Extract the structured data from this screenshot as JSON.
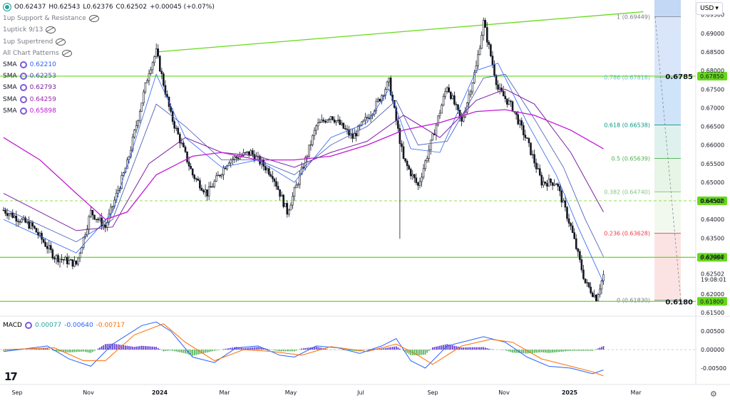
{
  "header": {
    "ohlc": {
      "o": "O0.62437",
      "h": "H0.62543",
      "l": "L0.62376",
      "c": "C0.62502",
      "chg": "+0.00045 (+0.07%)"
    },
    "indicators": [
      "1up Support & Resistance",
      "1uptick 9/13",
      "1up Supertrend",
      "All Chart Patterns"
    ],
    "sma": [
      {
        "label": "SMA",
        "value": "0.62210",
        "color": "#2962ff"
      },
      {
        "label": "SMA",
        "value": "0.62253",
        "color": "#3f51b5"
      },
      {
        "label": "SMA",
        "value": "0.62793",
        "color": "#7b1fa2"
      },
      {
        "label": "SMA",
        "value": "0.64259",
        "color": "#9c27b0"
      },
      {
        "label": "SMA",
        "value": "0.65898",
        "color": "#c118d6"
      }
    ]
  },
  "currency_button": "USD",
  "macd": {
    "label": "MACD",
    "hist": "0.00077",
    "macd": "-0.00640",
    "signal": "-0.00717"
  },
  "colors": {
    "up": "#131722",
    "accent_green": "#66d91a",
    "macd_line": "#2962ff",
    "signal_line": "#ff6d00",
    "hist_up": "#5b2ecc",
    "hist_down": "#4caf50"
  },
  "chart_data": [
    {
      "type": "candlestick",
      "title": "",
      "ylim": [
        0.6148,
        0.698
      ],
      "x_labels": [
        "Sep",
        "Nov",
        "2024",
        "Mar",
        "May",
        "Jul",
        "Sep",
        "Nov",
        "2025",
        "Mar"
      ],
      "y_ticks": [
        "0.69500",
        "0.69000",
        "0.68500",
        "0.68000",
        "0.67500",
        "0.67000",
        "0.66500",
        "0.66000",
        "0.65500",
        "0.65000",
        "0.64500",
        "0.64000",
        "0.63500",
        "0.63000",
        "0.62500",
        "0.62000",
        "0.61500"
      ],
      "price_anchors": [
        {
          "t": 0,
          "p": 0.6425
        },
        {
          "t": 8,
          "p": 0.638
        },
        {
          "t": 14,
          "p": 0.63
        },
        {
          "t": 20,
          "p": 0.628
        },
        {
          "t": 24,
          "p": 0.642
        },
        {
          "t": 28,
          "p": 0.638
        },
        {
          "t": 34,
          "p": 0.655
        },
        {
          "t": 40,
          "p": 0.68
        },
        {
          "t": 42,
          "p": 0.685
        },
        {
          "t": 46,
          "p": 0.668
        },
        {
          "t": 52,
          "p": 0.652
        },
        {
          "t": 56,
          "p": 0.647
        },
        {
          "t": 62,
          "p": 0.656
        },
        {
          "t": 68,
          "p": 0.658
        },
        {
          "t": 74,
          "p": 0.652
        },
        {
          "t": 78,
          "p": 0.642
        },
        {
          "t": 82,
          "p": 0.653
        },
        {
          "t": 86,
          "p": 0.665
        },
        {
          "t": 90,
          "p": 0.668
        },
        {
          "t": 96,
          "p": 0.662
        },
        {
          "t": 102,
          "p": 0.67
        },
        {
          "t": 106,
          "p": 0.677
        },
        {
          "t": 110,
          "p": 0.656
        },
        {
          "t": 114,
          "p": 0.649
        },
        {
          "t": 118,
          "p": 0.662
        },
        {
          "t": 122,
          "p": 0.676
        },
        {
          "t": 126,
          "p": 0.666
        },
        {
          "t": 130,
          "p": 0.681
        },
        {
          "t": 132,
          "p": 0.693
        },
        {
          "t": 136,
          "p": 0.675
        },
        {
          "t": 140,
          "p": 0.67
        },
        {
          "t": 144,
          "p": 0.661
        },
        {
          "t": 148,
          "p": 0.65
        },
        {
          "t": 152,
          "p": 0.65
        },
        {
          "t": 156,
          "p": 0.638
        },
        {
          "t": 160,
          "p": 0.623
        },
        {
          "t": 163,
          "p": 0.619
        },
        {
          "t": 165,
          "p": 0.625
        }
      ],
      "ma_lines": [
        {
          "color": "#2962ff",
          "width": 0.8,
          "pts": [
            [
              0,
              0.64
            ],
            [
              20,
              0.631
            ],
            [
              30,
              0.642
            ],
            [
              42,
              0.679
            ],
            [
              50,
              0.662
            ],
            [
              60,
              0.654
            ],
            [
              70,
              0.656
            ],
            [
              80,
              0.65
            ],
            [
              90,
              0.662
            ],
            [
              100,
              0.666
            ],
            [
              106,
              0.675
            ],
            [
              112,
              0.659
            ],
            [
              120,
              0.658
            ],
            [
              130,
              0.68
            ],
            [
              136,
              0.682
            ],
            [
              144,
              0.666
            ],
            [
              152,
              0.652
            ],
            [
              158,
              0.638
            ],
            [
              165,
              0.623
            ]
          ]
        },
        {
          "color": "#3f51b5",
          "width": 0.8,
          "pts": [
            [
              0,
              0.643
            ],
            [
              20,
              0.634
            ],
            [
              30,
              0.64
            ],
            [
              42,
              0.671
            ],
            [
              50,
              0.665
            ],
            [
              60,
              0.656
            ],
            [
              70,
              0.656
            ],
            [
              80,
              0.652
            ],
            [
              90,
              0.66
            ],
            [
              100,
              0.665
            ],
            [
              108,
              0.672
            ],
            [
              114,
              0.66
            ],
            [
              122,
              0.661
            ],
            [
              132,
              0.678
            ],
            [
              138,
              0.679
            ],
            [
              146,
              0.667
            ],
            [
              154,
              0.654
            ],
            [
              160,
              0.64
            ],
            [
              165,
              0.63
            ]
          ]
        },
        {
          "color": "#7b1fa2",
          "width": 1.0,
          "pts": [
            [
              0,
              0.647
            ],
            [
              20,
              0.637
            ],
            [
              30,
              0.638
            ],
            [
              40,
              0.655
            ],
            [
              50,
              0.662
            ],
            [
              60,
              0.658
            ],
            [
              70,
              0.657
            ],
            [
              80,
              0.654
            ],
            [
              90,
              0.658
            ],
            [
              100,
              0.661
            ],
            [
              110,
              0.668
            ],
            [
              120,
              0.662
            ],
            [
              130,
              0.672
            ],
            [
              138,
              0.675
            ],
            [
              146,
              0.671
            ],
            [
              156,
              0.658
            ],
            [
              165,
              0.642
            ]
          ]
        },
        {
          "color": "#c118d6",
          "width": 1.3,
          "pts": [
            [
              0,
              0.662
            ],
            [
              10,
              0.656
            ],
            [
              20,
              0.647
            ],
            [
              28,
              0.64
            ],
            [
              34,
              0.642
            ],
            [
              42,
              0.652
            ],
            [
              52,
              0.657
            ],
            [
              60,
              0.658
            ],
            [
              70,
              0.656
            ],
            [
              80,
              0.656
            ],
            [
              90,
              0.657
            ],
            [
              100,
              0.66
            ],
            [
              110,
              0.664
            ],
            [
              120,
              0.666
            ],
            [
              130,
              0.669
            ],
            [
              138,
              0.6695
            ],
            [
              146,
              0.668
            ],
            [
              156,
              0.664
            ],
            [
              165,
              0.659
            ]
          ]
        }
      ],
      "horizontal_levels": [
        {
          "price": 0.6785,
          "label": "0.6785",
          "tag": "0.67850"
        },
        {
          "price": 0.62984,
          "label": "",
          "tag": "0.62984"
        },
        {
          "price": 0.618,
          "label": "0.6180",
          "tag": "0.61800"
        }
      ],
      "dashed_level": {
        "price": 0.64502,
        "tag": "0.64502"
      },
      "current_price": {
        "price": 0.62502,
        "tag": "0.62502",
        "countdown": "19:08:01"
      },
      "trendline": [
        [
          42,
          0.685
        ],
        [
          176,
          0.6958
        ]
      ],
      "fibonacci": [
        {
          "ratio": "1",
          "price": 0.69449,
          "label": "1 (0.69449)",
          "color": "#787b86"
        },
        {
          "ratio": "0.786",
          "price": 0.67818,
          "label": "0.786 (0.67818)",
          "color": "#64b5f6"
        },
        {
          "ratio": "0.618",
          "price": 0.66538,
          "label": "0.618 (0.66538)",
          "color": "#089981"
        },
        {
          "ratio": "0.5",
          "price": 0.65639,
          "label": "0.5 (0.65639)",
          "color": "#4caf50"
        },
        {
          "ratio": "0.382",
          "price": 0.6474,
          "label": "0.382 (0.64740)",
          "color": "#81c784"
        },
        {
          "ratio": "0.236",
          "price": 0.63628,
          "label": "0.236 (0.63628)",
          "color": "#f23645"
        },
        {
          "ratio": "0",
          "price": 0.6183,
          "label": "0 (0.61830)",
          "color": "#787b86"
        }
      ]
    },
    {
      "type": "macd",
      "ylim": [
        -0.0075,
        0.0083
      ],
      "y_ticks": [
        "0.00500",
        "0.00000",
        "-0.00500"
      ],
      "macd_anchors": [
        [
          0,
          -0.0005
        ],
        [
          12,
          0.001
        ],
        [
          18,
          -0.0025
        ],
        [
          24,
          -0.0045
        ],
        [
          30,
          0.0015
        ],
        [
          38,
          0.0065
        ],
        [
          42,
          0.0075
        ],
        [
          46,
          0.005
        ],
        [
          52,
          -0.002
        ],
        [
          58,
          -0.0035
        ],
        [
          64,
          0.0005
        ],
        [
          70,
          0.001
        ],
        [
          76,
          -0.0015
        ],
        [
          80,
          -0.002
        ],
        [
          86,
          0.001
        ],
        [
          92,
          0.0005
        ],
        [
          98,
          -0.001
        ],
        [
          104,
          0.001
        ],
        [
          108,
          0.003
        ],
        [
          112,
          -0.003
        ],
        [
          116,
          -0.005
        ],
        [
          122,
          0.001
        ],
        [
          128,
          0.0025
        ],
        [
          132,
          0.0035
        ],
        [
          138,
          0.002
        ],
        [
          144,
          -0.002
        ],
        [
          150,
          -0.0045
        ],
        [
          156,
          -0.005
        ],
        [
          162,
          -0.0065
        ],
        [
          165,
          -0.0055
        ]
      ],
      "signal_anchors": [
        [
          0,
          0.0
        ],
        [
          14,
          0.0005
        ],
        [
          22,
          -0.003
        ],
        [
          28,
          -0.003
        ],
        [
          36,
          0.004
        ],
        [
          44,
          0.007
        ],
        [
          50,
          0.002
        ],
        [
          58,
          -0.003
        ],
        [
          66,
          0.0
        ],
        [
          74,
          -0.0005
        ],
        [
          82,
          -0.0015
        ],
        [
          90,
          0.0008
        ],
        [
          100,
          -0.0005
        ],
        [
          108,
          0.0015
        ],
        [
          114,
          -0.0015
        ],
        [
          118,
          -0.004
        ],
        [
          126,
          0.001
        ],
        [
          134,
          0.0028
        ],
        [
          140,
          0.002
        ],
        [
          148,
          -0.0025
        ],
        [
          156,
          -0.0045
        ],
        [
          162,
          -0.006
        ],
        [
          165,
          -0.0071
        ]
      ]
    }
  ]
}
